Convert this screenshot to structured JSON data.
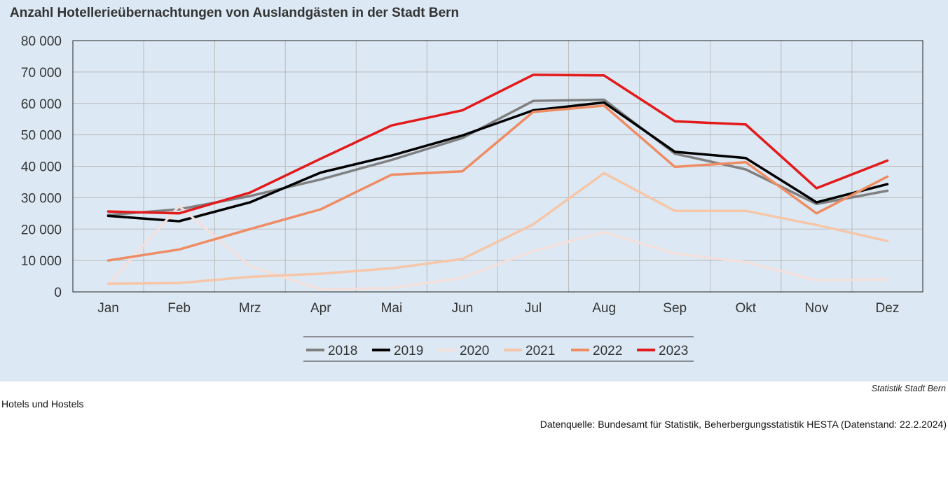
{
  "chart_data": {
    "type": "line",
    "title": "Anzahl Hotellerieübernachtungen von Auslandgästen in der Stadt Bern",
    "xlabel": "",
    "ylabel": "",
    "categories": [
      "Jan",
      "Feb",
      "Mrz",
      "Apr",
      "Mai",
      "Jun",
      "Jul",
      "Aug",
      "Sep",
      "Okt",
      "Nov",
      "Dez"
    ],
    "ylim": [
      0,
      80000
    ],
    "yticks": [
      0,
      10000,
      20000,
      30000,
      40000,
      50000,
      60000,
      70000,
      80000
    ],
    "ytick_labels": [
      "0",
      "10 000",
      "20 000",
      "30 000",
      "40 000",
      "50 000",
      "60 000",
      "70 000",
      "80 000"
    ],
    "grid": true,
    "legend_position": "bottom",
    "series": [
      {
        "name": "2018",
        "color": "#808080",
        "values": [
          24500,
          26300,
          30500,
          35800,
          42000,
          49000,
          60800,
          61200,
          44000,
          39000,
          28000,
          32200
        ]
      },
      {
        "name": "2019",
        "color": "#000000",
        "values": [
          24200,
          22500,
          28500,
          38000,
          43400,
          49800,
          57800,
          60300,
          44600,
          42600,
          28500,
          34300
        ]
      },
      {
        "name": "2020",
        "color": "#f3e0dc",
        "values": [
          2400,
          27300,
          8200,
          800,
          1200,
          4500,
          13000,
          19000,
          12200,
          9500,
          3700,
          4000
        ]
      },
      {
        "name": "2021",
        "color": "#f6c6a8",
        "values": [
          2600,
          2800,
          4800,
          5800,
          7500,
          10500,
          21500,
          37800,
          25800,
          25800,
          21300,
          16200
        ]
      },
      {
        "name": "2022",
        "color": "#ef8c64",
        "values": [
          10000,
          13500,
          20000,
          26300,
          37300,
          38400,
          57300,
          59300,
          39800,
          41300,
          25000,
          36700
        ]
      },
      {
        "name": "2023",
        "color": "#e31a1c",
        "values": [
          25600,
          25000,
          31600,
          42400,
          53000,
          57800,
          69100,
          68900,
          54300,
          53300,
          33000,
          41800
        ]
      }
    ]
  },
  "footer": {
    "credit": "Statistik Stadt Bern",
    "note": "Hotels und Hostels",
    "source": "Datenquelle: Bundesamt für Statistik, Beherbergungsstatistik HESTA (Datenstand: 22.2.2024)"
  }
}
